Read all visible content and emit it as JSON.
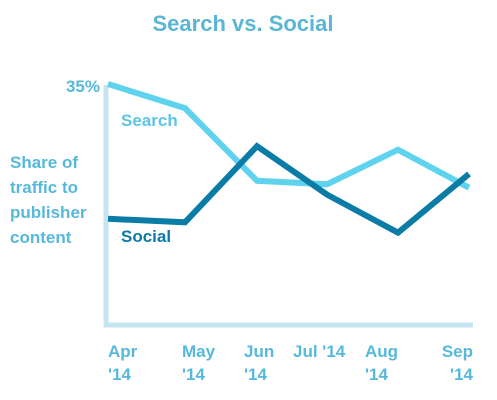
{
  "chart_data": {
    "type": "line",
    "title": "Search vs. Social",
    "ylabel": [
      "Share of",
      "traffic to",
      "publisher",
      "content"
    ],
    "y_tick_label": "35%",
    "y_tick_value": 35,
    "ylim": [
      0,
      35
    ],
    "grid": false,
    "categories": [
      [
        "Apr",
        "'14"
      ],
      [
        "May",
        "'14"
      ],
      [
        "Jun",
        "'14"
      ],
      [
        "Jul '14"
      ],
      [
        "Aug",
        "'14"
      ],
      [
        "Sep",
        "'14"
      ]
    ],
    "series": [
      {
        "name": "Search",
        "color": "#5fd3ee",
        "values": [
          35,
          31.5,
          21,
          20.5,
          25.5,
          20
        ]
      },
      {
        "name": "Social",
        "color": "#0b7ca6",
        "values": [
          15.5,
          15,
          26,
          19,
          13.5,
          22
        ]
      }
    ]
  },
  "colors": {
    "title": "#5bb6d6",
    "axis": "#c5e5f0",
    "label": "#56b9dc"
  }
}
